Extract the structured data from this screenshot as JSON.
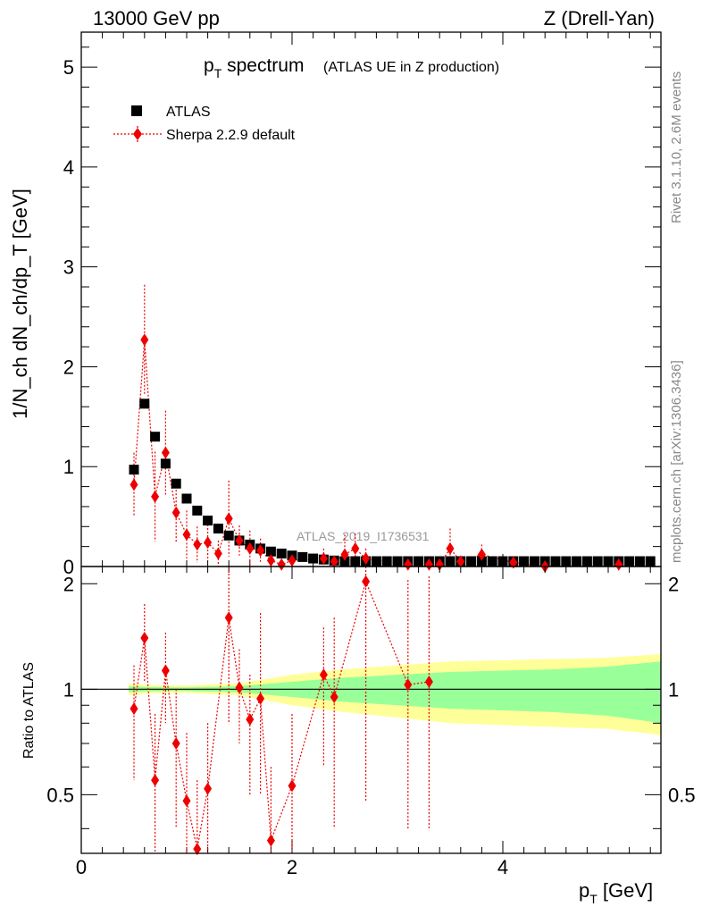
{
  "header": {
    "left": "13000 GeV pp",
    "right": "Z (Drell-Yan)"
  },
  "side_labels": {
    "rivet": "Rivet 3.1.10,  2.6M events",
    "mcplots": "mcplots.cern.ch [arXiv:1306.3436]"
  },
  "chart_data": [
    {
      "panel": "main",
      "type": "scatter",
      "title": "p_T spectrum",
      "title_main": "p",
      "title_sub": "T",
      "title_rest": " spectrum",
      "subtitle": "(ATLAS UE in Z production)",
      "ylabel": "1/N_ch dN_ch/dp_T [GeV]",
      "xlim": [
        0,
        5.5
      ],
      "ylim": [
        0,
        5.35
      ],
      "yticks": [
        0,
        1,
        2,
        3,
        4,
        5
      ],
      "ytick_labels": [
        "0",
        "1",
        "2",
        "3",
        "4",
        "5"
      ],
      "watermark": "ATLAS_2019_I1736531",
      "legend": [
        "ATLAS",
        "Sherpa 2.2.9 default"
      ],
      "legend_position": "top-left",
      "series": [
        {
          "name": "ATLAS",
          "marker": "square",
          "color": "#000000",
          "x": [
            0.5,
            0.6,
            0.7,
            0.8,
            0.9,
            1.0,
            1.1,
            1.2,
            1.3,
            1.4,
            1.5,
            1.6,
            1.7,
            1.8,
            1.9,
            2.0,
            2.1,
            2.2,
            2.3,
            2.4,
            2.5,
            2.6,
            2.7,
            2.8,
            2.9,
            3.0,
            3.1,
            3.2,
            3.3,
            3.4,
            3.5,
            3.6,
            3.7,
            3.8,
            3.9,
            4.0,
            4.1,
            4.2,
            4.3,
            4.4,
            4.5,
            4.6,
            4.7,
            4.8,
            4.9,
            5.0,
            5.1,
            5.2,
            5.3,
            5.4
          ],
          "y": [
            0.97,
            1.63,
            1.3,
            1.03,
            0.83,
            0.68,
            0.56,
            0.46,
            0.38,
            0.31,
            0.26,
            0.22,
            0.18,
            0.15,
            0.13,
            0.11,
            0.095,
            0.08,
            0.07,
            0.06,
            0.052,
            0.045,
            0.04,
            0.035,
            0.031,
            0.027,
            0.024,
            0.021,
            0.019,
            0.017,
            0.015,
            0.013,
            0.012,
            0.011,
            0.01,
            0.009,
            0.008,
            0.007,
            0.0065,
            0.006,
            0.0055,
            0.005,
            0.0045,
            0.004,
            0.0037,
            0.0034,
            0.0031,
            0.0028,
            0.0025,
            0.0022
          ]
        },
        {
          "name": "Sherpa 2.2.9 default",
          "marker": "diamond",
          "color": "#ee0000",
          "x": [
            0.5,
            0.6,
            0.7,
            0.8,
            0.9,
            1.0,
            1.1,
            1.2,
            1.3,
            1.4,
            1.5,
            1.6,
            1.7,
            1.8,
            1.9,
            2.0,
            2.3,
            2.4,
            2.5,
            2.6,
            2.7,
            3.1,
            3.3,
            3.4,
            3.5,
            3.6,
            3.8,
            4.1,
            4.4,
            5.1
          ],
          "y": [
            0.82,
            2.27,
            0.7,
            1.14,
            0.54,
            0.32,
            0.22,
            0.24,
            0.13,
            0.48,
            0.26,
            0.18,
            0.16,
            0.06,
            0.02,
            0.06,
            0.08,
            0.05,
            0.12,
            0.18,
            0.08,
            0.02,
            0.02,
            0.02,
            0.18,
            0.05,
            0.12,
            0.04,
            0.0,
            0.02
          ],
          "yerr": [
            0.32,
            0.55,
            0.45,
            0.42,
            0.3,
            0.24,
            0.18,
            0.18,
            0.13,
            0.38,
            0.15,
            0.18,
            0.12,
            0.06,
            0.05,
            0.06,
            0.1,
            0.05,
            0.2,
            0.15,
            0.1,
            0.03,
            0.03,
            0.04,
            0.2,
            0.05,
            0.1,
            0.04,
            0.05,
            0.02
          ]
        }
      ]
    },
    {
      "panel": "ratio",
      "type": "scatter",
      "ylabel": "Ratio to ATLAS",
      "xlabel_main": "p",
      "xlabel_sub": "T",
      "xlabel_rest": " [GeV]",
      "xlim": [
        0,
        5.5
      ],
      "ylim": [
        0.34,
        2.24
      ],
      "yticks": [
        0.5,
        1,
        2
      ],
      "ytick_labels": [
        "0.5",
        "1",
        "2"
      ],
      "xticks": [
        0,
        2,
        4
      ],
      "xtick_labels": [
        "0",
        "2",
        "4"
      ],
      "reference_line": 1,
      "bands": {
        "x": [
          0.45,
          0.6,
          0.8,
          1.0,
          1.5,
          2.0,
          2.5,
          3.0,
          3.5,
          4.0,
          4.5,
          5.0,
          5.5
        ],
        "inner_half_width": [
          0.02,
          0.015,
          0.012,
          0.012,
          0.02,
          0.05,
          0.08,
          0.1,
          0.12,
          0.13,
          0.14,
          0.16,
          0.2
        ],
        "outer_half_width": [
          0.04,
          0.03,
          0.025,
          0.025,
          0.04,
          0.1,
          0.14,
          0.17,
          0.2,
          0.21,
          0.22,
          0.23,
          0.26
        ],
        "inner_color": "#99ff99",
        "outer_color": "#ffff99"
      },
      "series": [
        {
          "name": "Sherpa 2.2.9 default",
          "marker": "diamond",
          "color": "#ee0000",
          "x": [
            0.5,
            0.6,
            0.7,
            0.8,
            0.9,
            1.0,
            1.1,
            1.2,
            1.4,
            1.5,
            1.6,
            1.7,
            1.8,
            2.0,
            2.3,
            2.4,
            2.7,
            3.1,
            3.3
          ],
          "y": [
            0.88,
            1.4,
            0.55,
            1.13,
            0.7,
            0.48,
            0.35,
            0.52,
            1.6,
            1.01,
            0.82,
            0.94,
            0.37,
            0.53,
            1.1,
            0.95,
            2.03,
            1.03,
            1.05
          ],
          "ylo": [
            0.55,
            1.05,
            0.3,
            0.8,
            0.4,
            0.25,
            0.2,
            0.3,
            0.8,
            0.7,
            0.5,
            0.5,
            0.2,
            0.2,
            0.6,
            0.4,
            0.48,
            0.4,
            0.4
          ],
          "yhi": [
            1.17,
            1.75,
            0.85,
            1.45,
            1.0,
            0.75,
            0.55,
            0.8,
            2.4,
            1.3,
            1.1,
            1.65,
            0.6,
            0.85,
            1.5,
            1.6,
            2.4,
            2.05,
            2.1
          ]
        }
      ]
    }
  ]
}
